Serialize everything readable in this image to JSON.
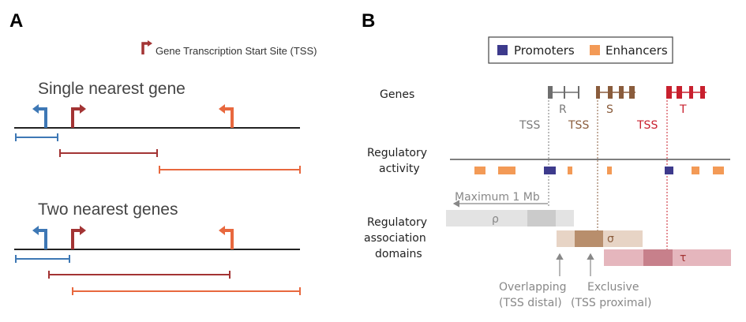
{
  "panel_a": {
    "letter": "A",
    "legend_label": "Gene Transcription Start Site (TSS)",
    "single_title": "Single nearest gene",
    "two_title": "Two nearest genes"
  },
  "panel_b": {
    "letter": "B",
    "legend": {
      "promoters": "Promoters",
      "enhancers": "Enhancers"
    },
    "row_genes": "Genes",
    "row_activity_1": "Regulatory",
    "row_activity_2": "activity",
    "row_domains_1": "Regulatory",
    "row_domains_2": "association",
    "row_domains_3": "domains",
    "gene_r": "R",
    "gene_s": "S",
    "gene_t": "T",
    "tss": "TSS",
    "max_label": "Maximum 1 Mb",
    "dom_rho": "ρ",
    "dom_sigma": "σ",
    "dom_tau": "τ",
    "overlap_1": "Overlapping",
    "overlap_2": "(TSS distal)",
    "excl_1": "Exclusive",
    "excl_2": "(TSS proximal)"
  },
  "colors": {
    "blue": "#3e78b5",
    "darkred": "#a33434",
    "orange": "#e8683e",
    "purple": "#3d3a8c",
    "enhancer": "#f39a56",
    "gray_gene": "#6e6e6e",
    "brown_gene": "#8a5c3c",
    "red_gene": "#c8202e"
  }
}
